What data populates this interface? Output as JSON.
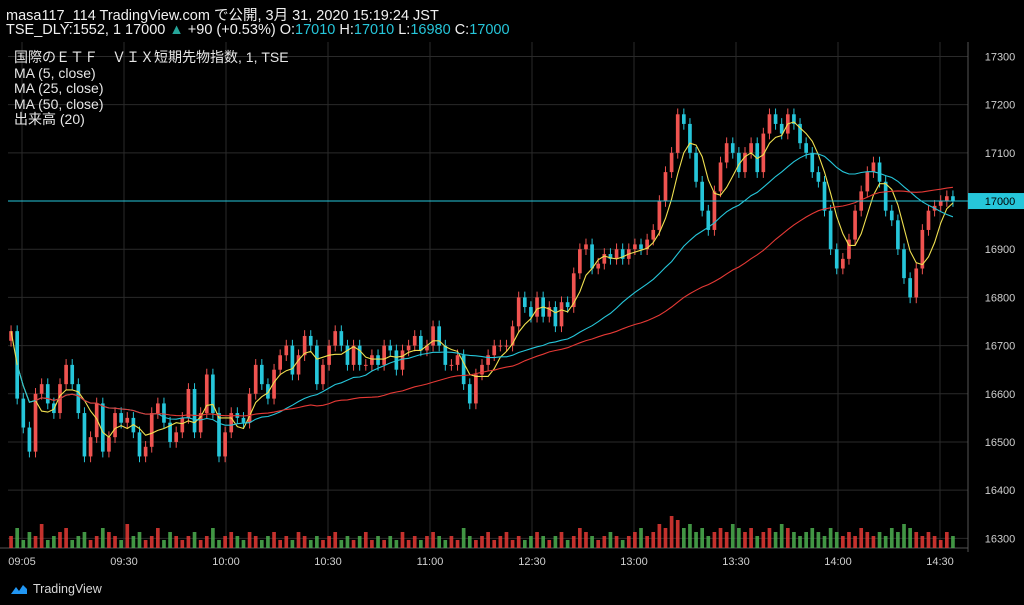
{
  "header": {
    "line1": "masa117_114 TradingView.com で公開, 3月 31, 2020 15:19:24 JST",
    "symbol": "TSE_DLY:1552, 1",
    "last": "17000",
    "change": "+90 (+0.53%)",
    "o_label": "O:",
    "o_value": "17010",
    "h_label": "H:",
    "h_value": "17010",
    "l_label": "L:",
    "l_value": "16980",
    "c_label": "C:",
    "c_value": "17000"
  },
  "legend": {
    "title": "国際のＥＴＦ　ＶＩＸ短期先物指数, 1, TSE",
    "ma5": "MA (5, close)",
    "ma25": "MA (25, close)",
    "ma50": "MA (50, close)",
    "volume": "出来高 (20)"
  },
  "footer": {
    "brand": "TradingView",
    "logo_icon": "tradingview-logo-icon"
  },
  "colors": {
    "background": "#000000",
    "up": "#ef5350",
    "down": "#26c6da",
    "ma5": "#f0e050",
    "ma25": "#26c6da",
    "ma50": "#e53935",
    "price_line": "#26c6da",
    "vol_up": "#e53935",
    "vol_down": "#4caf50",
    "grid": "#2a2a2a"
  },
  "chart_data": {
    "type": "candlestick",
    "title": "国際のＥＴＦ　ＶＩＸ短期先物指数, 1, TSE",
    "ylim": [
      16280,
      17330
    ],
    "yticks": [
      "17300",
      "17200",
      "17100",
      "17000",
      "16900",
      "16800",
      "16700",
      "16600",
      "16500",
      "16400",
      "16300"
    ],
    "last_price_label": "17000",
    "x_ticks": [
      "09:05",
      "09:30",
      "10:00",
      "10:30",
      "11:00",
      "12:30",
      "13:00",
      "13:30",
      "14:00",
      "14:30"
    ],
    "close_series": [
      16730,
      16590,
      16530,
      16480,
      16600,
      16620,
      16580,
      16560,
      16620,
      16660,
      16620,
      16560,
      16470,
      16510,
      16580,
      16480,
      16510,
      16560,
      16540,
      16550,
      16520,
      16470,
      16490,
      16560,
      16580,
      16540,
      16500,
      16520,
      16550,
      16610,
      16520,
      16560,
      16640,
      16560,
      16470,
      16520,
      16560,
      16550,
      16540,
      16600,
      16660,
      16620,
      16590,
      16650,
      16680,
      16700,
      16640,
      16680,
      16720,
      16700,
      16620,
      16660,
      16700,
      16730,
      16700,
      16660,
      16700,
      16660,
      16660,
      16680,
      16660,
      16700,
      16690,
      16650,
      16690,
      16700,
      16720,
      16690,
      16700,
      16740,
      16700,
      16660,
      16660,
      16680,
      16620,
      16580,
      16640,
      16660,
      16680,
      16700,
      16700,
      16700,
      16740,
      16800,
      16780,
      16760,
      16800,
      16760,
      16780,
      16740,
      16790,
      16780,
      16850,
      16900,
      16910,
      16860,
      16870,
      16890,
      16880,
      16900,
      16880,
      16900,
      16910,
      16900,
      16920,
      16940,
      17000,
      17060,
      17100,
      17180,
      17160,
      17100,
      17040,
      16980,
      16940,
      17020,
      17080,
      17120,
      17100,
      17060,
      17100,
      17120,
      17060,
      17140,
      17180,
      17160,
      17140,
      17180,
      17160,
      17120,
      17100,
      17060,
      17040,
      16980,
      16900,
      16860,
      16880,
      16920,
      16980,
      17020,
      17060,
      17080,
      17040,
      16980,
      16960,
      16900,
      16840,
      16800,
      16860,
      16940,
      16980,
      16990,
      17000,
      17010,
      17000
    ]
  },
  "volume_data": {
    "type": "bar",
    "label": "出来高 (20)",
    "heights": [
      3,
      5,
      2,
      4,
      3,
      6,
      2,
      3,
      4,
      5,
      2,
      3,
      4,
      2,
      3,
      5,
      4,
      3,
      2,
      6,
      3,
      4,
      2,
      3,
      5,
      2,
      4,
      3,
      2,
      3,
      4,
      2,
      3,
      5,
      2,
      3,
      4,
      3,
      2,
      4,
      3,
      2,
      3,
      4,
      2,
      3,
      2,
      4,
      3,
      2,
      3,
      2,
      3,
      4,
      2,
      3,
      2,
      3,
      4,
      2,
      3,
      2,
      3,
      2,
      4,
      2,
      3,
      2,
      3,
      4,
      3,
      2,
      3,
      2,
      5,
      3,
      2,
      3,
      4,
      2,
      3,
      4,
      2,
      3,
      2,
      3,
      4,
      3,
      2,
      3,
      4,
      2,
      3,
      5,
      4,
      3,
      2,
      3,
      4,
      3,
      2,
      3,
      4,
      5,
      3,
      4,
      6,
      5,
      8,
      7,
      5,
      6,
      4,
      5,
      3,
      4,
      5,
      4,
      6,
      5,
      4,
      5,
      3,
      4,
      5,
      4,
      6,
      5,
      4,
      3,
      4,
      5,
      4,
      3,
      5,
      4,
      3,
      4,
      3,
      5,
      4,
      3,
      4,
      3,
      5,
      4,
      6,
      5,
      4,
      3,
      4,
      3,
      2,
      4,
      3
    ]
  }
}
